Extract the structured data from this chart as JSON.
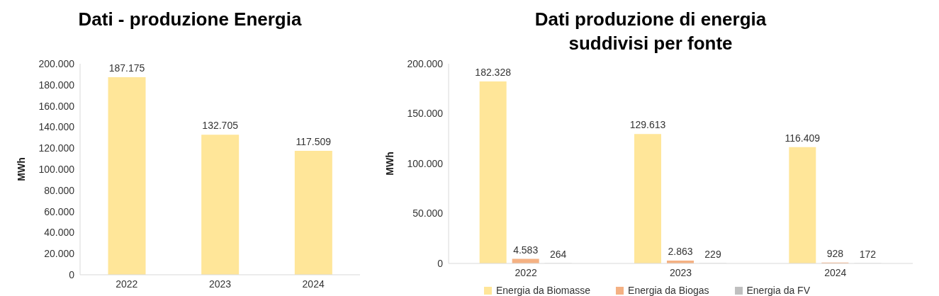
{
  "chart_data": [
    {
      "type": "bar",
      "title": "Dati - produzione Energia",
      "ylabel": "MWh",
      "categories": [
        "2022",
        "2023",
        "2024"
      ],
      "series": [
        {
          "color": "#ffe699",
          "values": [
            187175,
            132705,
            117509
          ],
          "value_labels": [
            "187.175",
            "132.705",
            "117.509"
          ]
        }
      ],
      "ylim": [
        0,
        200000
      ],
      "yticks": [
        {
          "value": 0,
          "label": "0"
        },
        {
          "value": 20000,
          "label": "20.000"
        },
        {
          "value": 40000,
          "label": "40.000"
        },
        {
          "value": 60000,
          "label": "60.000"
        },
        {
          "value": 80000,
          "label": "80.000"
        },
        {
          "value": 100000,
          "label": "100.000"
        },
        {
          "value": 120000,
          "label": "120.000"
        },
        {
          "value": 140000,
          "label": "140.000"
        },
        {
          "value": 160000,
          "label": "160.000"
        },
        {
          "value": 180000,
          "label": "180.000"
        },
        {
          "value": 200000,
          "label": "200.000"
        }
      ],
      "grid": false,
      "legend": false
    },
    {
      "type": "bar",
      "title": "Dati produzione di energia suddivisi per fonte",
      "ylabel": "MWh",
      "categories": [
        "2022",
        "2023",
        "2024"
      ],
      "series": [
        {
          "name": "Energia da Biomasse",
          "color": "#ffe699",
          "values": [
            182328,
            129613,
            116409
          ],
          "value_labels": [
            "182.328",
            "129.613",
            "116.409"
          ]
        },
        {
          "name": "Energia da Biogas",
          "color": "#f4b183",
          "values": [
            4583,
            2863,
            928
          ],
          "value_labels": [
            "4.583",
            "2.863",
            "928"
          ]
        },
        {
          "name": "Energia da FV",
          "color": "#bfbfbf",
          "values": [
            264,
            229,
            172
          ],
          "value_labels": [
            "264",
            "229",
            "172"
          ]
        }
      ],
      "ylim": [
        0,
        200000
      ],
      "yticks": [
        {
          "value": 0,
          "label": "0"
        },
        {
          "value": 50000,
          "label": "50.000"
        },
        {
          "value": 100000,
          "label": "100.000"
        },
        {
          "value": 150000,
          "label": "150.000"
        },
        {
          "value": 200000,
          "label": "200.000"
        }
      ],
      "grid": false,
      "legend": "bottom"
    }
  ]
}
